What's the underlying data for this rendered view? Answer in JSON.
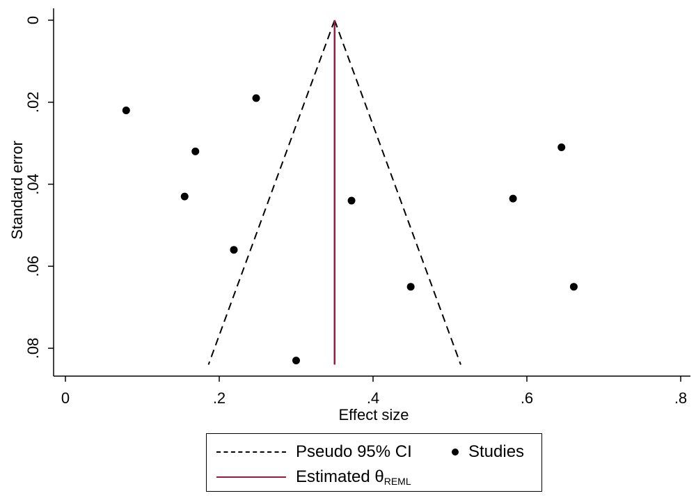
{
  "chart_data": {
    "type": "scatter",
    "title": "",
    "xlabel": "Effect size",
    "ylabel": "Standard error",
    "xlim": [
      0,
      0.8
    ],
    "ylim": [
      0,
      0.084
    ],
    "y_inverted": true,
    "x_ticks": [
      0,
      0.2,
      0.4,
      0.6,
      0.8
    ],
    "x_tick_labels": [
      "0",
      ".2",
      ".4",
      ".6",
      ".8"
    ],
    "y_ticks": [
      0,
      0.02,
      0.04,
      0.06,
      0.08
    ],
    "y_tick_labels": [
      "0",
      ".02",
      ".04",
      ".06",
      ".08"
    ],
    "grid": false,
    "legend_position": "bottom",
    "pooled_estimate": 0.35,
    "ci_funnel": {
      "apex": [
        0.35,
        0
      ],
      "left_bottom": [
        0.186,
        0.084
      ],
      "right_bottom": [
        0.514,
        0.084
      ]
    },
    "series": [
      {
        "name": "Studies",
        "points": [
          {
            "x": 0.079,
            "y": 0.022
          },
          {
            "x": 0.248,
            "y": 0.019
          },
          {
            "x": 0.169,
            "y": 0.032
          },
          {
            "x": 0.155,
            "y": 0.043
          },
          {
            "x": 0.219,
            "y": 0.056
          },
          {
            "x": 0.372,
            "y": 0.044
          },
          {
            "x": 0.449,
            "y": 0.065
          },
          {
            "x": 0.3,
            "y": 0.083
          },
          {
            "x": 0.582,
            "y": 0.0435
          },
          {
            "x": 0.645,
            "y": 0.031
          },
          {
            "x": 0.661,
            "y": 0.065
          }
        ]
      }
    ],
    "colors": {
      "estimate_line": "#9b1b3a",
      "points": "#000000",
      "ci": "#000000"
    }
  },
  "legend": {
    "ci_label": "Pseudo 95% CI",
    "studies_label": "Studies",
    "estimate_label": "Estimated θ",
    "estimate_subscript": "REML"
  }
}
